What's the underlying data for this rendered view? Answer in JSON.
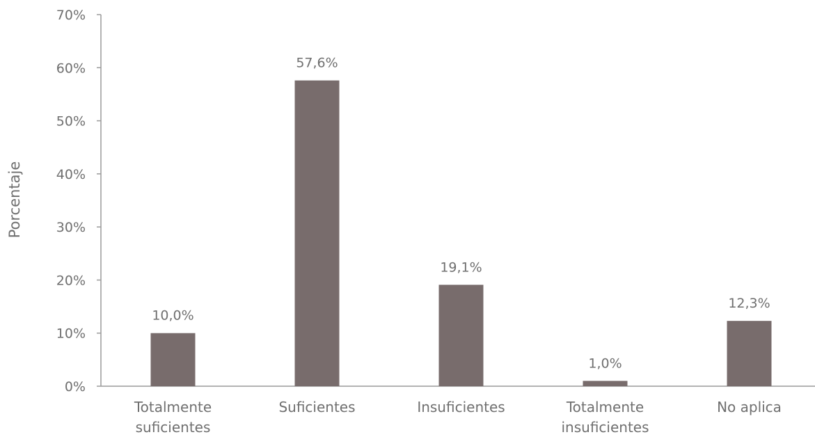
{
  "chart_data": {
    "type": "bar",
    "title": "",
    "xlabel": "",
    "ylabel": "Porcentaje",
    "ylim": [
      0,
      70
    ],
    "yticks": [
      "0%",
      "10%",
      "20%",
      "30%",
      "40%",
      "50%",
      "60%",
      "70%"
    ],
    "categories": [
      [
        "Totalmente",
        "suficientes"
      ],
      [
        "Suficientes"
      ],
      [
        "Insuficientes"
      ],
      [
        "Totalmente",
        "insuficientes"
      ],
      [
        "No aplica"
      ]
    ],
    "values": [
      10.0,
      57.6,
      19.1,
      1.0,
      12.3
    ],
    "data_labels": [
      "10,0%",
      "57,6%",
      "19,1%",
      "1,0%",
      "12,3%"
    ],
    "grid": false,
    "legend": "none",
    "colors": {
      "bar": "#786c6c",
      "axis": "#9a9a9a",
      "text": "#6f6f6f"
    }
  }
}
